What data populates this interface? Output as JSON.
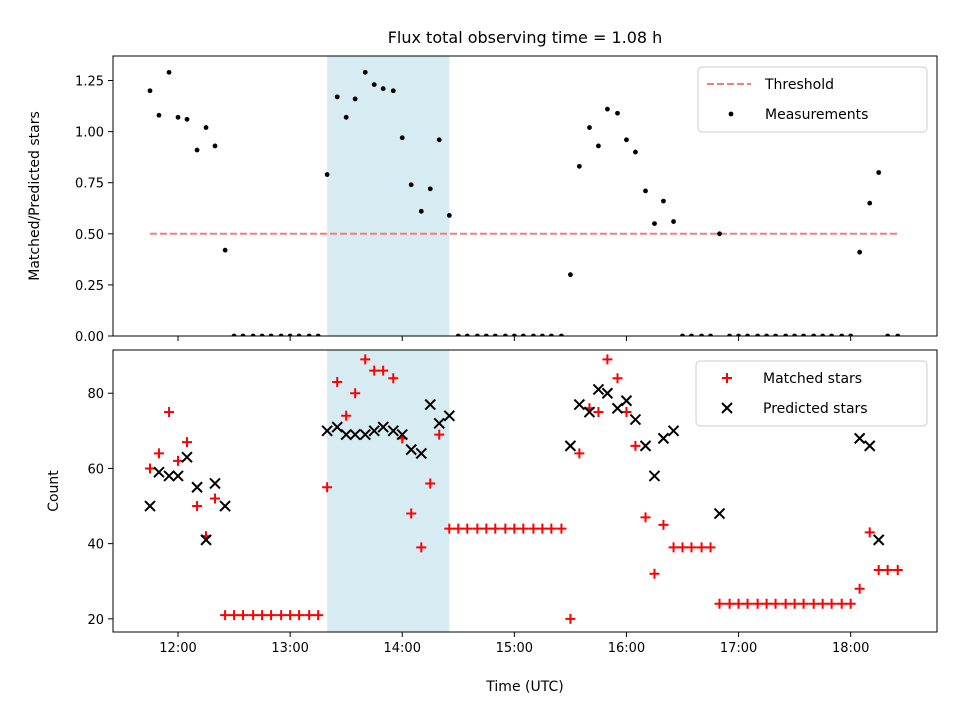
{
  "title": "Flux total observing time = 1.08 h",
  "chart_data": [
    {
      "type": "scatter",
      "ylabel": "Matched/Predicted stars",
      "xlim": [
        11.42,
        18.77
      ],
      "ylim": [
        0,
        1.37
      ],
      "yticks": [
        0,
        0.25,
        0.5,
        0.75,
        1.0,
        1.25
      ],
      "ytick_labels": [
        "0.00",
        "0.25",
        "0.50",
        "0.75",
        "1.00",
        "1.25"
      ],
      "xticks": [
        12,
        13,
        14,
        15,
        16,
        17,
        18
      ],
      "show_xtick_labels": false,
      "legend_position": "top-right",
      "highlight_span": [
        13.33,
        14.42
      ],
      "highlight_color": "#add8e6",
      "series": [
        {
          "name": "Threshold",
          "kind": "dashed-line",
          "color": "#f08080",
          "x": [
            11.75,
            18.42
          ],
          "y": [
            0.5,
            0.5
          ]
        },
        {
          "name": "Measurements",
          "kind": "dot",
          "color": "#000000",
          "x": [
            11.75,
            11.83,
            11.92,
            12.0,
            12.08,
            12.17,
            12.25,
            12.33,
            12.42,
            12.5,
            12.58,
            12.67,
            12.75,
            12.83,
            12.92,
            13.0,
            13.08,
            13.17,
            13.25,
            13.33,
            13.42,
            13.5,
            13.58,
            13.67,
            13.75,
            13.83,
            13.92,
            14.0,
            14.08,
            14.17,
            14.25,
            14.33,
            14.42,
            14.5,
            14.58,
            14.67,
            14.75,
            14.83,
            14.92,
            15.0,
            15.08,
            15.17,
            15.25,
            15.33,
            15.42,
            15.5,
            15.58,
            15.67,
            15.75,
            15.83,
            15.92,
            16.0,
            16.08,
            16.17,
            16.25,
            16.33,
            16.42,
            16.5,
            16.58,
            16.67,
            16.75,
            16.83,
            16.92,
            17.0,
            17.08,
            17.17,
            17.25,
            17.33,
            17.42,
            17.5,
            17.58,
            17.67,
            17.75,
            17.83,
            17.92,
            18.0,
            18.08,
            18.17,
            18.25,
            18.33,
            18.42
          ],
          "y": [
            1.2,
            1.08,
            1.29,
            1.07,
            1.06,
            0.91,
            1.02,
            0.93,
            0.42,
            0,
            0,
            0,
            0,
            0,
            0,
            0,
            0,
            0,
            0,
            0.79,
            1.17,
            1.07,
            1.16,
            1.29,
            1.23,
            1.21,
            1.2,
            0.97,
            0.74,
            0.61,
            0.72,
            0.96,
            0.59,
            0,
            0,
            0,
            0,
            0,
            0,
            0,
            0,
            0,
            0,
            0,
            0,
            0.3,
            0.83,
            1.02,
            0.93,
            1.11,
            1.09,
            0.96,
            0.9,
            0.71,
            0.55,
            0.66,
            0.56,
            0,
            0,
            0,
            0,
            0.5,
            0,
            0,
            0,
            0,
            0,
            0,
            0,
            0,
            0,
            0,
            0,
            0,
            0,
            0,
            0.41,
            0.65,
            0.8,
            0,
            0
          ]
        }
      ]
    },
    {
      "type": "scatter",
      "xlabel": "Time (UTC)",
      "ylabel": "Count",
      "xlim": [
        11.42,
        18.77
      ],
      "ylim": [
        16.5,
        91.5
      ],
      "yticks": [
        20,
        40,
        60,
        80
      ],
      "ytick_labels": [
        "20",
        "40",
        "60",
        "80"
      ],
      "xticks": [
        12,
        13,
        14,
        15,
        16,
        17,
        18
      ],
      "xtick_labels": [
        "12:00",
        "13:00",
        "14:00",
        "15:00",
        "16:00",
        "17:00",
        "18:00"
      ],
      "legend_position": "top-right",
      "highlight_span": [
        13.33,
        14.42
      ],
      "highlight_color": "#add8e6",
      "series": [
        {
          "name": "Matched stars",
          "kind": "plus",
          "color": "#ff0000",
          "x": [
            11.75,
            11.83,
            11.92,
            12.0,
            12.08,
            12.17,
            12.25,
            12.33,
            12.42,
            12.5,
            12.58,
            12.67,
            12.75,
            12.83,
            12.92,
            13.0,
            13.08,
            13.17,
            13.25,
            13.33,
            13.42,
            13.5,
            13.58,
            13.67,
            13.75,
            13.83,
            13.92,
            14.0,
            14.08,
            14.17,
            14.25,
            14.33,
            14.42,
            14.5,
            14.58,
            14.67,
            14.75,
            14.83,
            14.92,
            15.0,
            15.08,
            15.17,
            15.25,
            15.33,
            15.42,
            15.5,
            15.58,
            15.67,
            15.75,
            15.83,
            15.92,
            16.0,
            16.08,
            16.17,
            16.25,
            16.33,
            16.42,
            16.5,
            16.58,
            16.67,
            16.75,
            16.83,
            16.92,
            17.0,
            17.08,
            17.17,
            17.25,
            17.33,
            17.42,
            17.5,
            17.58,
            17.67,
            17.75,
            17.83,
            17.92,
            18.0,
            18.08,
            18.17,
            18.25,
            18.33,
            18.42
          ],
          "y": [
            60,
            64,
            75,
            62,
            67,
            50,
            42,
            52,
            21,
            21,
            21,
            21,
            21,
            21,
            21,
            21,
            21,
            21,
            21,
            55,
            83,
            74,
            80,
            89,
            86,
            86,
            84,
            68,
            48,
            39,
            56,
            69,
            44,
            44,
            44,
            44,
            44,
            44,
            44,
            44,
            44,
            44,
            44,
            44,
            44,
            20,
            64,
            76,
            75,
            89,
            84,
            75,
            66,
            47,
            32,
            45,
            39,
            39,
            39,
            39,
            39,
            24,
            24,
            24,
            24,
            24,
            24,
            24,
            24,
            24,
            24,
            24,
            24,
            24,
            24,
            24,
            28,
            43,
            33,
            33,
            33
          ]
        },
        {
          "name": "Predicted stars",
          "kind": "x",
          "color": "#000000",
          "x": [
            11.75,
            11.83,
            11.92,
            12.0,
            12.08,
            12.17,
            12.25,
            12.33,
            12.42,
            13.33,
            13.42,
            13.5,
            13.58,
            13.67,
            13.75,
            13.83,
            13.92,
            14.0,
            14.08,
            14.17,
            14.25,
            14.33,
            14.42,
            15.5,
            15.58,
            15.67,
            15.75,
            15.83,
            15.92,
            16.0,
            16.08,
            16.17,
            16.25,
            16.33,
            16.42,
            16.83,
            18.08,
            18.17,
            18.25
          ],
          "y": [
            50,
            59,
            58,
            58,
            63,
            55,
            41,
            56,
            50,
            70,
            71,
            69,
            69,
            69,
            70,
            71,
            70,
            69,
            65,
            64,
            77,
            72,
            74,
            66,
            77,
            75,
            81,
            80,
            76,
            78,
            73,
            66,
            58,
            68,
            70,
            48,
            68,
            66,
            41
          ]
        }
      ]
    }
  ]
}
